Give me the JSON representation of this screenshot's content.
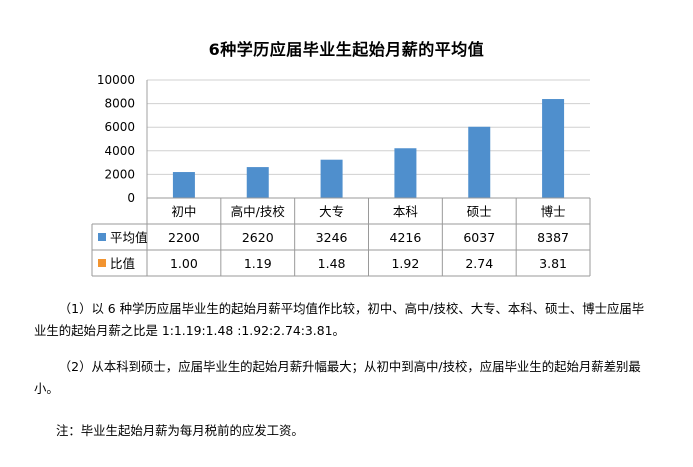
{
  "chart_data": {
    "type": "bar",
    "title": "6种学历应届毕业生起始月薪的平均值",
    "categories": [
      "初中",
      "高中/技校",
      "大专",
      "本科",
      "硕士",
      "博士"
    ],
    "ylim": [
      0,
      10000
    ],
    "yticks": [
      "0",
      "2000",
      "4000",
      "6000",
      "8000",
      "10000"
    ],
    "series": [
      {
        "name": "平均值",
        "values": [
          2200,
          2620,
          3246,
          4216,
          6037,
          8387
        ],
        "labels": [
          "2200",
          "2620",
          "3246",
          "4216",
          "6037",
          "8387"
        ],
        "color": "#4f8fcd"
      },
      {
        "name": "比值",
        "values": [
          1.0,
          1.19,
          1.48,
          1.92,
          2.74,
          3.81
        ],
        "labels": [
          "1.00",
          "1.19",
          "1.48",
          "1.92",
          "2.74",
          "3.81"
        ],
        "color": "#f29430"
      }
    ],
    "grid": true,
    "legend": "data-table"
  },
  "text": {
    "para1": "（1）以 6 种学历应届毕业生的起始月薪平均值作比较，初中、高中/技校、大专、本科、硕士、博士应届毕业生的起始月薪之比是 1:1.19:1.48 :1.92:2.74:3.81。",
    "para2": "（2）从本科到硕士，应届毕业生的起始月薪升幅最大；从初中到高中/技校，应届毕业生的起始月薪差别最小。",
    "note": "注：毕业生起始月薪为每月税前的应发工资。"
  }
}
